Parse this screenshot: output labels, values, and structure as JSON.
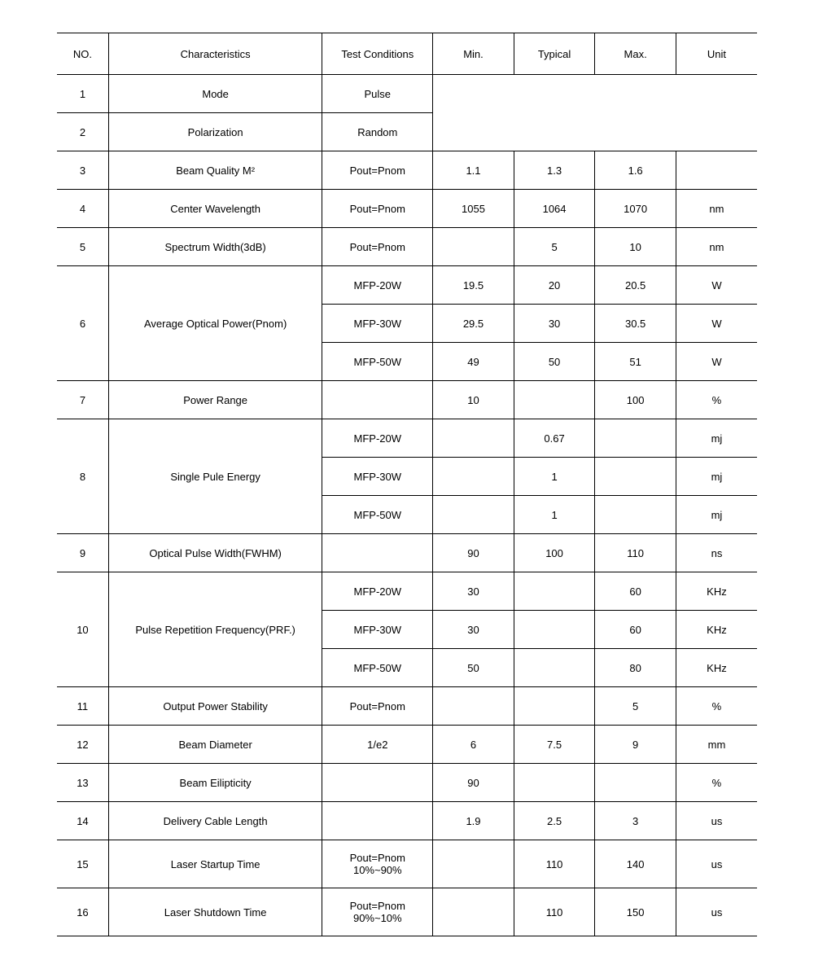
{
  "headers": {
    "no": "NO.",
    "char": "Characteristics",
    "tc": "Test Conditions",
    "min": "Min.",
    "typ": "Typical",
    "max": "Max.",
    "unit": "Unit"
  },
  "r1": {
    "no": "1",
    "char": "Mode",
    "tc": "Pulse"
  },
  "r2": {
    "no": "2",
    "char": "Polarization",
    "tc": "Random"
  },
  "r3": {
    "no": "3",
    "char": "Beam Quality M²",
    "tc": "Pout=Pnom",
    "min": "1.1",
    "typ": "1.3",
    "max": "1.6",
    "unit": ""
  },
  "r4": {
    "no": "4",
    "char": "Center Wavelength",
    "tc": "Pout=Pnom",
    "min": "1055",
    "typ": "1064",
    "max": "1070",
    "unit": "nm"
  },
  "r5": {
    "no": "5",
    "char": "Spectrum Width(3dB)",
    "tc": "Pout=Pnom",
    "min": "",
    "typ": "5",
    "max": "10",
    "unit": "nm"
  },
  "r6": {
    "no": "6",
    "char": "Average Optical Power(Pnom)",
    "a": {
      "tc": "MFP-20W",
      "min": "19.5",
      "typ": "20",
      "max": "20.5",
      "unit": "W"
    },
    "b": {
      "tc": "MFP-30W",
      "min": "29.5",
      "typ": "30",
      "max": "30.5",
      "unit": "W"
    },
    "c": {
      "tc": "MFP-50W",
      "min": "49",
      "typ": "50",
      "max": "51",
      "unit": "W"
    }
  },
  "r7": {
    "no": "7",
    "char": "Power Range",
    "tc": "",
    "min": "10",
    "typ": "",
    "max": "100",
    "unit": "%"
  },
  "r8": {
    "no": "8",
    "char": "Single Pule Energy",
    "a": {
      "tc": "MFP-20W",
      "min": "",
      "typ": "0.67",
      "max": "",
      "unit": "mj"
    },
    "b": {
      "tc": "MFP-30W",
      "min": "",
      "typ": "1",
      "max": "",
      "unit": "mj"
    },
    "c": {
      "tc": "MFP-50W",
      "min": "",
      "typ": "1",
      "max": "",
      "unit": "mj"
    }
  },
  "r9": {
    "no": "9",
    "char": "Optical Pulse Width(FWHM)",
    "tc": "",
    "min": "90",
    "typ": "100",
    "max": "110",
    "unit": "ns"
  },
  "r10": {
    "no": "10",
    "char": "Pulse Repetition Frequency(PRF.)",
    "a": {
      "tc": "MFP-20W",
      "min": "30",
      "typ": "",
      "max": "60",
      "unit": "KHz"
    },
    "b": {
      "tc": "MFP-30W",
      "min": "30",
      "typ": "",
      "max": "60",
      "unit": "KHz"
    },
    "c": {
      "tc": "MFP-50W",
      "min": "50",
      "typ": "",
      "max": "80",
      "unit": "KHz"
    }
  },
  "r11": {
    "no": "11",
    "char": "Output Power Stability",
    "tc": "Pout=Pnom",
    "min": "",
    "typ": "",
    "max": "5",
    "unit": "%"
  },
  "r12": {
    "no": "12",
    "char": "Beam Diameter",
    "tc": "1/e2",
    "min": "6",
    "typ": "7.5",
    "max": "9",
    "unit": "mm"
  },
  "r13": {
    "no": "13",
    "char": "Beam Eilipticity",
    "tc": "",
    "min": "90",
    "typ": "",
    "max": "",
    "unit": "%"
  },
  "r14": {
    "no": "14",
    "char": "Delivery Cable Length",
    "tc": "",
    "min": "1.9",
    "typ": "2.5",
    "max": "3",
    "unit": "us"
  },
  "r15": {
    "no": "15",
    "char": "Laser Startup Time",
    "tc": "Pout=Pnom 10%~90%",
    "min": "",
    "typ": "110",
    "max": "140",
    "unit": "us"
  },
  "r16": {
    "no": "16",
    "char": "Laser Shutdown Time",
    "tc": "Pout=Pnom 90%~10%",
    "min": "",
    "typ": "110",
    "max": "150",
    "unit": "us"
  }
}
